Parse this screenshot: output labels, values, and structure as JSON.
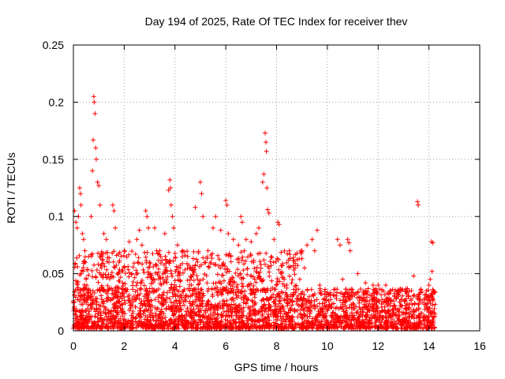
{
  "chart_data": {
    "type": "scatter",
    "title": "Day 194 of 2025, Rate Of TEC Index for receiver thev",
    "xlabel": "GPS time / hours",
    "ylabel": "ROTI / TECUs",
    "xlim": [
      0,
      16
    ],
    "ylim": [
      0,
      0.25
    ],
    "x_ticks": [
      0,
      2,
      4,
      6,
      8,
      10,
      12,
      14,
      16
    ],
    "x_tick_labels": [
      "0",
      "2",
      "4",
      "6",
      "8",
      "10",
      "12",
      "14",
      "16"
    ],
    "y_ticks": [
      0,
      0.05,
      0.1,
      0.15,
      0.2,
      0.25
    ],
    "y_tick_labels": [
      "0",
      "0.05",
      "0.1",
      "0.15",
      "0.2",
      "0.25"
    ],
    "grid": true,
    "marker": "+",
    "color": "#ff0000",
    "data_range_hours": [
      0,
      14.25
    ],
    "typical_band": [
      0.0,
      0.035
    ],
    "series": [
      {
        "name": "ROTI",
        "points": [
          [
            0.05,
            0.105
          ],
          [
            0.1,
            0.095
          ],
          [
            0.15,
            0.09
          ],
          [
            0.2,
            0.1
          ],
          [
            0.25,
            0.125
          ],
          [
            0.28,
            0.12
          ],
          [
            0.3,
            0.11
          ],
          [
            0.35,
            0.085
          ],
          [
            0.4,
            0.08
          ],
          [
            0.45,
            0.07
          ],
          [
            0.6,
            0.065
          ],
          [
            0.7,
            0.1
          ],
          [
            0.75,
            0.14
          ],
          [
            0.78,
            0.167
          ],
          [
            0.8,
            0.205
          ],
          [
            0.82,
            0.2
          ],
          [
            0.85,
            0.19
          ],
          [
            0.88,
            0.16
          ],
          [
            0.9,
            0.15
          ],
          [
            0.95,
            0.13
          ],
          [
            1.0,
            0.127
          ],
          [
            1.05,
            0.11
          ],
          [
            1.2,
            0.085
          ],
          [
            1.3,
            0.08
          ],
          [
            1.4,
            0.06
          ],
          [
            1.55,
            0.11
          ],
          [
            1.6,
            0.105
          ],
          [
            1.65,
            0.09
          ],
          [
            1.8,
            0.06
          ],
          [
            2.0,
            0.07
          ],
          [
            2.2,
            0.078
          ],
          [
            2.5,
            0.08
          ],
          [
            2.6,
            0.088
          ],
          [
            2.7,
            0.075
          ],
          [
            2.85,
            0.105
          ],
          [
            2.9,
            0.1
          ],
          [
            2.95,
            0.09
          ],
          [
            3.2,
            0.09
          ],
          [
            3.4,
            0.07
          ],
          [
            3.6,
            0.085
          ],
          [
            3.75,
            0.123
          ],
          [
            3.8,
            0.132
          ],
          [
            3.82,
            0.125
          ],
          [
            3.85,
            0.11
          ],
          [
            3.9,
            0.1
          ],
          [
            3.95,
            0.09
          ],
          [
            4.1,
            0.075
          ],
          [
            4.3,
            0.07
          ],
          [
            4.5,
            0.065
          ],
          [
            4.8,
            0.108
          ],
          [
            5.0,
            0.13
          ],
          [
            5.05,
            0.12
          ],
          [
            5.1,
            0.1
          ],
          [
            5.3,
            0.07
          ],
          [
            5.5,
            0.09
          ],
          [
            5.6,
            0.1
          ],
          [
            5.8,
            0.088
          ],
          [
            6.0,
            0.114
          ],
          [
            6.05,
            0.11
          ],
          [
            6.1,
            0.085
          ],
          [
            6.3,
            0.08
          ],
          [
            6.5,
            0.075
          ],
          [
            6.6,
            0.1
          ],
          [
            6.65,
            0.095
          ],
          [
            6.8,
            0.08
          ],
          [
            7.0,
            0.078
          ],
          [
            7.2,
            0.085
          ],
          [
            7.3,
            0.09
          ],
          [
            7.45,
            0.13
          ],
          [
            7.5,
            0.137
          ],
          [
            7.55,
            0.173
          ],
          [
            7.58,
            0.165
          ],
          [
            7.6,
            0.157
          ],
          [
            7.62,
            0.125
          ],
          [
            7.65,
            0.106
          ],
          [
            7.7,
            0.103
          ],
          [
            7.9,
            0.08
          ],
          [
            8.05,
            0.095
          ],
          [
            8.1,
            0.093
          ],
          [
            8.5,
            0.07
          ],
          [
            9.0,
            0.07
          ],
          [
            9.2,
            0.075
          ],
          [
            9.4,
            0.08
          ],
          [
            9.5,
            0.07
          ],
          [
            9.6,
            0.088
          ],
          [
            10.4,
            0.08
          ],
          [
            10.5,
            0.075
          ],
          [
            10.8,
            0.08
          ],
          [
            10.85,
            0.077
          ],
          [
            10.9,
            0.07
          ],
          [
            11.2,
            0.05
          ],
          [
            11.5,
            0.042
          ],
          [
            12.0,
            0.04
          ],
          [
            12.3,
            0.04
          ],
          [
            12.8,
            0.035
          ],
          [
            13.4,
            0.048
          ],
          [
            13.55,
            0.113
          ],
          [
            13.58,
            0.11
          ],
          [
            14.1,
            0.078
          ],
          [
            14.15,
            0.077
          ],
          [
            14.12,
            0.052
          ],
          [
            14.05,
            0.045
          ],
          [
            14.0,
            0.04
          ],
          [
            13.9,
            0.035
          ],
          [
            0.3,
            0.05
          ],
          [
            0.5,
            0.045
          ],
          [
            1.1,
            0.055
          ],
          [
            2.3,
            0.05
          ],
          [
            3.0,
            0.06
          ],
          [
            4.2,
            0.055
          ],
          [
            5.2,
            0.06
          ],
          [
            6.2,
            0.065
          ],
          [
            7.1,
            0.06
          ],
          [
            8.3,
            0.045
          ],
          [
            9.1,
            0.055
          ],
          [
            10.6,
            0.045
          ],
          [
            11.8,
            0.04
          ],
          [
            12.5,
            0.035
          ],
          [
            13.2,
            0.03
          ],
          [
            9.7,
            0.04
          ]
        ]
      }
    ]
  }
}
